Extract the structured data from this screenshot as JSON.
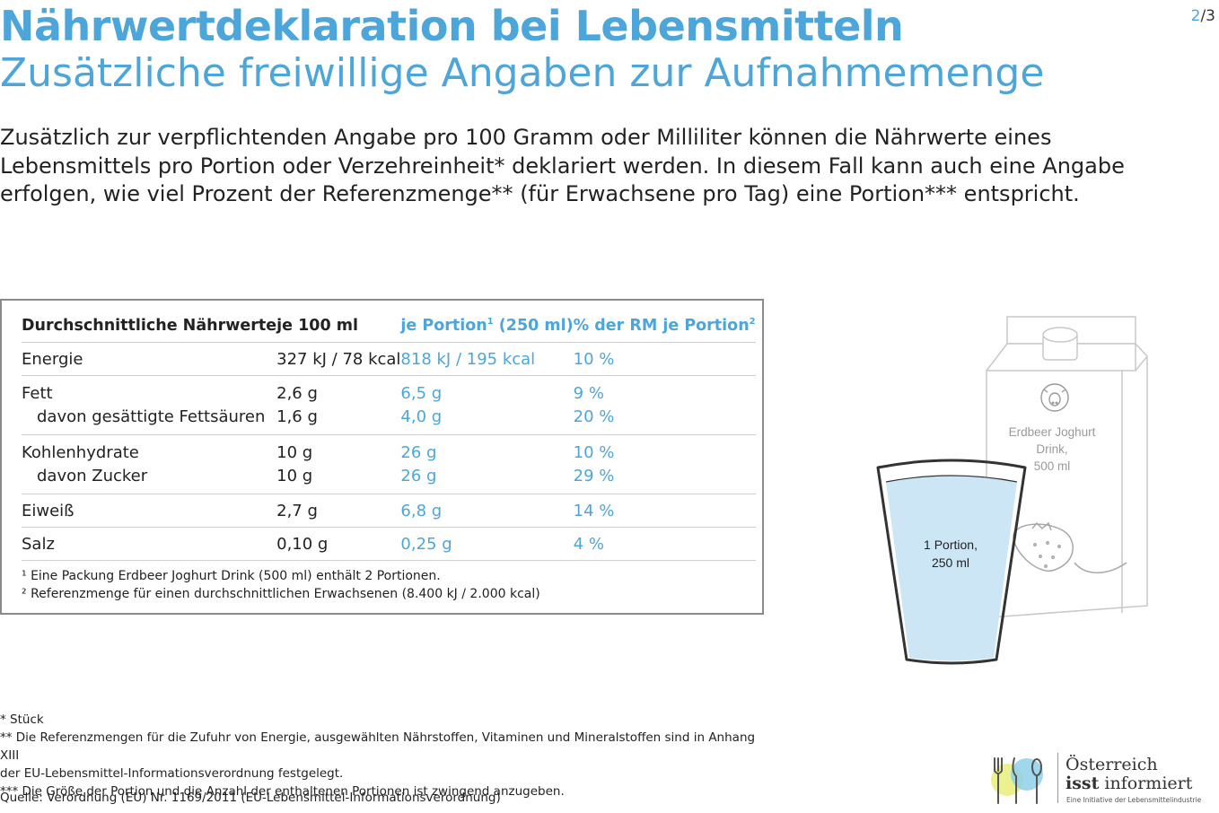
{
  "page": {
    "current": "2",
    "total": "/3"
  },
  "title": "Nährwertdeklaration bei Lebensmitteln",
  "subtitle": "Zusätzliche freiwillige Angaben zur Aufnahmemenge",
  "intro": "Zusätzlich zur verpflichtenden Angabe pro 100 Gramm oder Milliliter können die Nährwerte eines Lebensmittels pro Portion oder Verzehreinheit* deklariert werden. In diesem Fall kann auch eine Angabe erfolgen, wie viel Prozent der Referenzmenge** (für Erwachsene pro Tag) eine Portion*** entspricht.",
  "table": {
    "headers": {
      "c1": "Durchschnittliche Nährwerte",
      "c2": "je 100 ml",
      "c3": "je Portion",
      "c3_sup": "1",
      "c3_after": " (250 ml)",
      "c4": "% der RM je Portion",
      "c4_sup": "2"
    },
    "rows": [
      {
        "name": "Energie",
        "per100": "327 kJ / 78 kcal",
        "portion": "818 kJ / 195 kcal",
        "rm": "10 %"
      },
      {
        "name": "Fett",
        "per100": "2,6 g",
        "portion": "6,5 g",
        "rm": "9 %"
      },
      {
        "name": "davon gesättigte Fettsäuren",
        "per100": "1,6 g",
        "portion": "4,0 g",
        "rm": "20 %"
      },
      {
        "name": "Kohlenhydrate",
        "per100": "10 g",
        "portion": "26 g",
        "rm": "10 %"
      },
      {
        "name": "davon Zucker",
        "per100": "10 g",
        "portion": "26 g",
        "rm": "29 %"
      },
      {
        "name": "Eiweiß",
        "per100": "2,7 g",
        "portion": "6,8 g",
        "rm": "14 %"
      },
      {
        "name": "Salz",
        "per100": "0,10 g",
        "portion": "0,25 g",
        "rm": "4 %"
      }
    ],
    "footnotes": [
      "¹ Eine Packung Erdbeer Joghurt Drink (500 ml) enthält 2 Portionen.",
      "² Referenzmenge für einen durchschnittlichen Erwachsenen (8.400 kJ / 2.000 kcal)"
    ]
  },
  "illustration": {
    "carton_line1": "Erdbeer Joghurt",
    "carton_line2": "Drink,",
    "carton_line3": "500 ml",
    "glass_line1": "1 Portion,",
    "glass_line2": "250 ml",
    "colors": {
      "liquid": "#cde6f5",
      "outline": "#333333",
      "carton_line": "#c8c8c8"
    }
  },
  "notes": [
    "* Stück",
    "** Die Referenzmengen für die Zufuhr von Energie, ausgewählten Nährstoffen, Vitaminen und Mineralstoffen sind in Anhang XIII",
    "der EU-Lebensmittel-Informationsverordnung festgelegt.",
    "*** Die Größe der Portion und die Anzahl der enthaltenen Portionen ist zwingend anzugeben."
  ],
  "source": "Quelle: Verordnung (EU) Nr. 1169/2011 (EU-Lebensmittel-Informationsverordnung)",
  "logo": {
    "line1": "Österreich",
    "line2_bold": "isst",
    "line2_rest": " informiert",
    "line3": "Eine Initiative der Lebensmittelindustrie"
  },
  "colors": {
    "accent": "#4da6d9",
    "text": "#222222",
    "border": "#8a8a8a"
  }
}
